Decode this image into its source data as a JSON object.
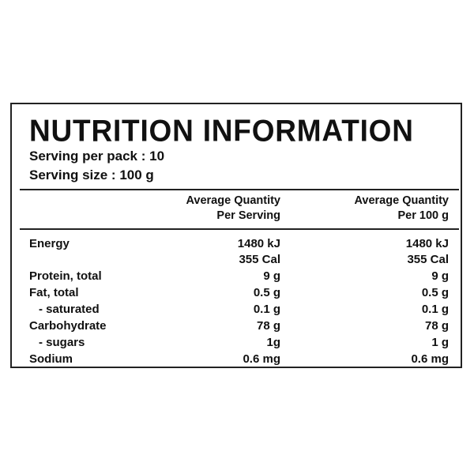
{
  "title": "NUTRITION INFORMATION",
  "serving_per_pack": "Serving per pack : 10",
  "serving_size": "Serving size : 100 g",
  "columns": {
    "per_serving_line1": "Average Quantity",
    "per_serving_line2": "Per Serving",
    "per_100g_line1": "Average Quantity",
    "per_100g_line2": "Per 100 g"
  },
  "rows": {
    "energy": {
      "label": "Energy",
      "per_serving": "1480 kJ",
      "per_100g": "1480 kJ"
    },
    "energy_cal": {
      "per_serving": "355 Cal",
      "per_100g": "355 Cal"
    },
    "protein": {
      "label": "Protein, total",
      "per_serving": "9 g",
      "per_100g": "9 g"
    },
    "fat": {
      "label": "Fat, total",
      "per_serving": "0.5 g",
      "per_100g": "0.5 g"
    },
    "saturated": {
      "label": "- saturated",
      "per_serving": "0.1 g",
      "per_100g": "0.1 g"
    },
    "carbohydrate": {
      "label": "Carbohydrate",
      "per_serving": "78 g",
      "per_100g": "78 g"
    },
    "sugars": {
      "label": "- sugars",
      "per_serving": "1g",
      "per_100g": "1 g"
    },
    "sodium": {
      "label": "Sodium",
      "per_serving": "0.6 mg",
      "per_100g": "0.6 mg"
    }
  }
}
